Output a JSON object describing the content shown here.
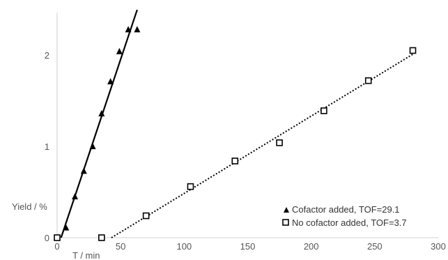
{
  "chart_data": {
    "type": "scatter",
    "title": "",
    "xlabel": "T / min",
    "ylabel": "Yield / %",
    "xlim": [
      0,
      300
    ],
    "ylim": [
      0,
      2.3
    ],
    "x_ticks": [
      0,
      50,
      100,
      150,
      200,
      250,
      300
    ],
    "y_ticks": [
      0,
      1,
      2
    ],
    "grid": false,
    "legend_position": "bottom-right",
    "colors": {
      "axis": "#d9d9d9",
      "series": "#000000",
      "text": "#555555"
    },
    "series": [
      {
        "name": "Cofactor added, TOF=29.1",
        "marker": "filled-triangle",
        "trendline": "solid",
        "x": [
          0,
          7,
          14,
          21,
          28,
          35,
          42,
          49,
          56,
          63
        ],
        "y": [
          0,
          0.11,
          0.45,
          0.73,
          1.0,
          1.36,
          1.71,
          2.04,
          2.28,
          2.28
        ]
      },
      {
        "name": "No cofactor added, TOF=3.7",
        "marker": "hollow-square",
        "trendline": "dotted",
        "x": [
          0,
          35,
          70,
          105,
          140,
          175,
          210,
          245,
          280
        ],
        "y": [
          0,
          0,
          0.24,
          0.56,
          0.84,
          1.04,
          1.39,
          1.72,
          2.05
        ]
      }
    ]
  }
}
